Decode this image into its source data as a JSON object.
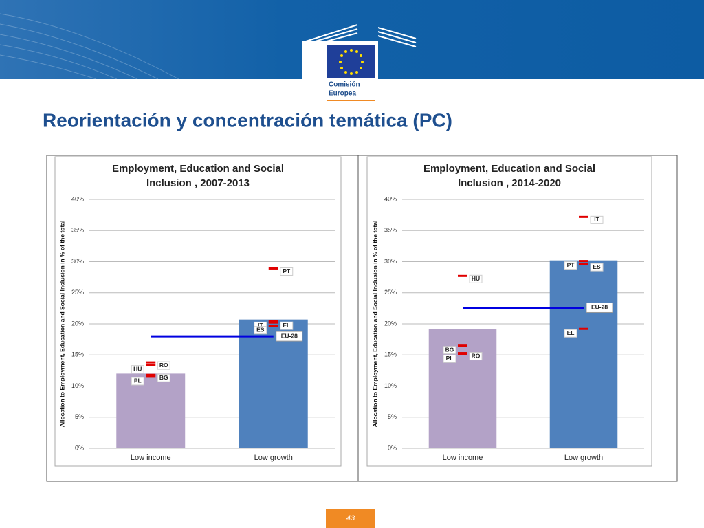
{
  "slide_title": "Reorientación y concentración temática (PC)",
  "logo_text": [
    "Comisión",
    "Europea"
  ],
  "page_number": "43",
  "chart_data": [
    {
      "type": "bar",
      "title": [
        "Employment, Education and Social",
        "Inclusion , 2007-2013"
      ],
      "y_label": "Allocation to Employment, Education and Social Inclusion in % of the total",
      "categories": [
        "Low income",
        "Low growth"
      ],
      "values": [
        12.0,
        20.7
      ],
      "colors": [
        "#b3a2c7",
        "#4f81bd"
      ],
      "ylim": [
        0,
        40
      ],
      "yticks": [
        {
          "value": 0,
          "label": "0%"
        },
        {
          "value": 5,
          "label": "5%"
        },
        {
          "value": 10,
          "label": "10%"
        },
        {
          "value": 15,
          "label": "15%"
        },
        {
          "value": 20,
          "label": "20%"
        },
        {
          "value": 25,
          "label": "25%"
        },
        {
          "value": 30,
          "label": "30%"
        },
        {
          "value": 35,
          "label": "35%"
        },
        {
          "value": 40,
          "label": "40%"
        }
      ],
      "grid": true,
      "marker_color": "#e00000",
      "markers": [
        [
          {
            "label": "RO",
            "value": 13.8
          },
          {
            "label": "HU",
            "value": 13.4
          },
          {
            "label": "BG",
            "value": 11.8
          },
          {
            "label": "PL",
            "value": 11.5
          }
        ],
        [
          {
            "label": "PT",
            "value": 28.9
          },
          {
            "label": "IT",
            "value": 20.4
          },
          {
            "label": "EL",
            "value": 20.2
          },
          {
            "label": "ES",
            "value": 19.7
          }
        ]
      ],
      "reference": {
        "label": "EU-28",
        "value": 18.0,
        "color": "#0000e0"
      }
    },
    {
      "type": "bar",
      "title": [
        "Employment, Education and Social",
        "Inclusion , 2014-2020"
      ],
      "y_label": "Allocation to Employment, Education and Social Inclusion in  % of the total",
      "categories": [
        "Low income",
        "Low growth"
      ],
      "values": [
        19.2,
        30.2
      ],
      "colors": [
        "#b3a2c7",
        "#4f81bd"
      ],
      "ylim": [
        0,
        40
      ],
      "yticks": [
        {
          "value": 0,
          "label": "0%"
        },
        {
          "value": 5,
          "label": "5%"
        },
        {
          "value": 10,
          "label": "10%"
        },
        {
          "value": 15,
          "label": "15%"
        },
        {
          "value": 20,
          "label": "20%"
        },
        {
          "value": 25,
          "label": "25%"
        },
        {
          "value": 30,
          "label": "30%"
        },
        {
          "value": 35,
          "label": "35%"
        },
        {
          "value": 40,
          "label": "40%"
        }
      ],
      "grid": true,
      "marker_color": "#e00000",
      "markers": [
        [
          {
            "label": "HU",
            "value": 27.7
          },
          {
            "label": "BG",
            "value": 16.5
          },
          {
            "label": "RO",
            "value": 15.3
          },
          {
            "label": "PL",
            "value": 15.1
          }
        ],
        [
          {
            "label": "IT",
            "value": 37.2
          },
          {
            "label": "PT",
            "value": 30.1
          },
          {
            "label": "ES",
            "value": 29.6
          },
          {
            "label": "EL",
            "value": 19.2
          }
        ]
      ],
      "reference": {
        "label": "EU-28",
        "value": 22.6,
        "color": "#0000e0"
      }
    }
  ]
}
